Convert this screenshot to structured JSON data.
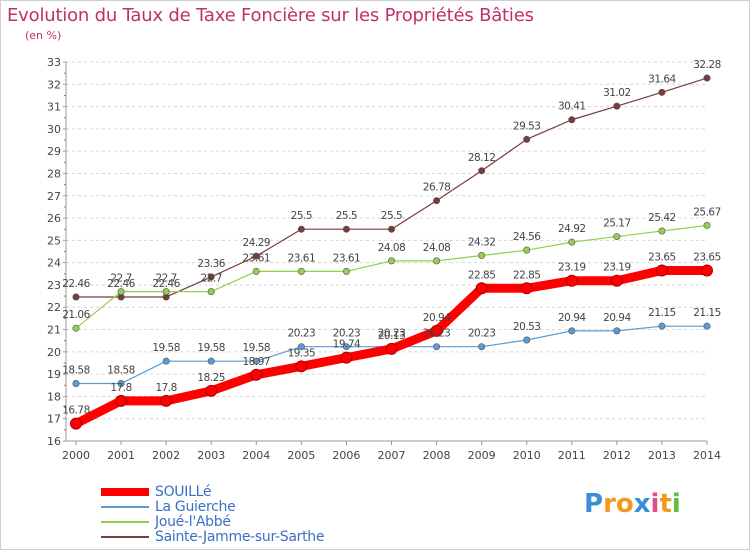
{
  "chart_data": {
    "type": "line",
    "title": "Evolution du Taux de Taxe Foncière sur les Propriétés Bâties",
    "subtitle": "(en %)",
    "x": [
      2000,
      2001,
      2002,
      2003,
      2004,
      2005,
      2006,
      2007,
      2008,
      2009,
      2010,
      2011,
      2012,
      2013,
      2014
    ],
    "ylim": [
      16,
      33
    ],
    "yticks": [
      16,
      17,
      18,
      19,
      20,
      21,
      22,
      23,
      24,
      25,
      26,
      27,
      28,
      29,
      30,
      31,
      32,
      33
    ],
    "grid": "dashed horizontal",
    "legend_position": "bottom-left",
    "series": [
      {
        "name": "SOUILLé",
        "color": "#ff0000",
        "values": [
          16.78,
          17.8,
          17.8,
          18.25,
          18.97,
          19.35,
          19.74,
          20.13,
          20.94,
          22.85,
          22.85,
          23.19,
          23.19,
          23.65,
          23.65
        ],
        "labels": [
          "16.78",
          "17.8",
          "17.8",
          "18.25",
          "18.97",
          "19.35",
          "19.74",
          "20.13",
          "20.94",
          "22.85",
          "22.85",
          "23.19",
          "23.19",
          "23.65",
          "23.65"
        ]
      },
      {
        "name": "La Guierche",
        "color": "#5b9bd5",
        "values": [
          18.58,
          18.58,
          19.58,
          19.58,
          19.58,
          20.23,
          20.23,
          20.23,
          20.23,
          20.23,
          20.53,
          20.94,
          20.94,
          21.15,
          21.15
        ],
        "labels": [
          "18.58",
          "18.58",
          "19.58",
          "19.58",
          "19.58",
          "20.23",
          "20.23",
          "20.23",
          "20.23",
          "20.23",
          "20.53",
          "20.94",
          "20.94",
          "21.15",
          "21.15"
        ]
      },
      {
        "name": "Joué-l'Abbé",
        "color": "#92d050",
        "values": [
          21.06,
          22.7,
          22.7,
          22.7,
          23.61,
          23.61,
          23.61,
          24.08,
          24.08,
          24.32,
          24.56,
          24.92,
          25.17,
          25.42,
          25.67
        ],
        "labels": [
          "21.06",
          "22.7",
          "22.7",
          "22.7",
          "23.61",
          "23.61",
          "23.61",
          "24.08",
          "24.08",
          "24.32",
          "24.56",
          "24.92",
          "25.17",
          "25.42",
          "25.67"
        ]
      },
      {
        "name": "Sainte-Jamme-sur-Sarthe",
        "color": "#7a3b3b",
        "values": [
          22.46,
          22.46,
          22.46,
          23.36,
          24.29,
          25.5,
          25.5,
          25.5,
          26.78,
          28.12,
          29.53,
          30.41,
          31.02,
          31.64,
          32.28
        ],
        "labels": [
          "22.46",
          "22.46",
          "22.46",
          "23.36",
          "24.29",
          "25.5",
          "25.5",
          "25.5",
          "26.78",
          "28.12",
          "29.53",
          "30.41",
          "31.02",
          "31.64",
          "32.28"
        ]
      }
    ]
  },
  "legend": {
    "items": [
      {
        "label": "SOUILLé",
        "color": "#ff0000"
      },
      {
        "label": "La Guierche",
        "color": "#5b9bd5"
      },
      {
        "label": "Joué-l'Abbé",
        "color": "#92d050"
      },
      {
        "label": "Sainte-Jamme-sur-Sarthe",
        "color": "#7a3b3b"
      }
    ]
  },
  "logo": {
    "text": "Proxiti",
    "letters": [
      {
        "ch": "P",
        "color": "#3b8fd9"
      },
      {
        "ch": "r",
        "color": "#f29a1f"
      },
      {
        "ch": "o",
        "color": "#f29a1f"
      },
      {
        "ch": "x",
        "color": "#3b8fd9"
      },
      {
        "ch": "i",
        "color": "#e34b8a"
      },
      {
        "ch": "t",
        "color": "#f29a1f"
      },
      {
        "ch": "i",
        "color": "#5fbf3f"
      }
    ]
  }
}
